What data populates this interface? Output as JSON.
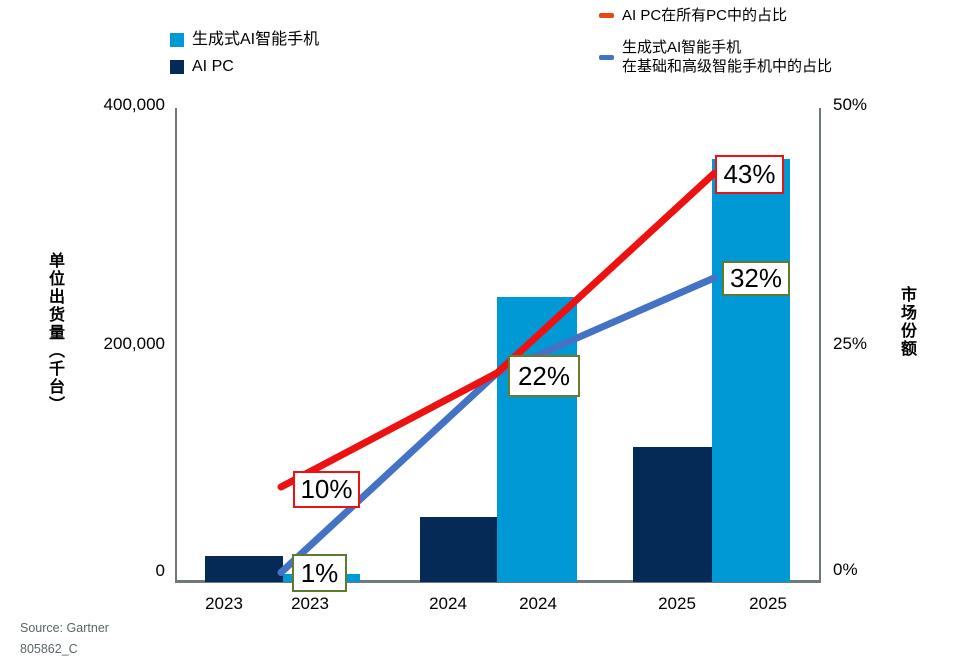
{
  "legend_left": {
    "items": [
      {
        "label": "生成式AI智能手机",
        "color": "#0099d6"
      },
      {
        "label": "AI PC",
        "color": "#052a56"
      }
    ]
  },
  "legend_right": {
    "items": [
      {
        "label": "AI PC在所有PC中的占比",
        "color": "#e8490f"
      },
      {
        "line1": "生成式AI智能手机",
        "line2": "在基础和高级智能手机中的占比",
        "color": "#4472c4"
      }
    ]
  },
  "y_axis_left": {
    "title": "单位出货量（千台）",
    "ticks": [
      "400,000",
      "200,000",
      "0"
    ]
  },
  "y_axis_right": {
    "title": "市场份额",
    "ticks": [
      "50%",
      "25%",
      "0%"
    ]
  },
  "source": {
    "line1": "Source: Gartner",
    "line2": "805862_C"
  },
  "chart_data": {
    "type": "bar-line-combo",
    "categories": [
      "2023",
      "2024",
      "2025"
    ],
    "x_tick_labels": [
      "2023",
      "2023",
      "2024",
      "2024",
      "2025",
      "2025"
    ],
    "ylabel_left": "单位出货量（千台）",
    "ylabel_right": "市场份额",
    "ylim_left": [
      0,
      400000
    ],
    "ylim_right_percent": [
      0,
      50
    ],
    "grid": false,
    "bar_series": [
      {
        "name": "AI PC",
        "color": "#052a56",
        "axis": "left",
        "values_thousand_units": [
          22000,
          54500,
          114000
        ]
      },
      {
        "name": "生成式AI智能手机",
        "color": "#0099d6",
        "axis": "left",
        "values_thousand_units": [
          7000,
          240000,
          356000
        ]
      }
    ],
    "line_series": [
      {
        "name": "AI PC在所有PC中的占比",
        "color": "#ee1111",
        "axis": "right",
        "values_percent": [
          10,
          22,
          43
        ]
      },
      {
        "name": "生成式AI智能手机在基础和高级智能手机中的占比",
        "color": "#4472c4",
        "axis": "right",
        "values_percent": [
          1,
          22,
          32
        ]
      }
    ],
    "data_labels": [
      {
        "text": "10%",
        "series": "AI PC在所有PC中的占比",
        "category": "2023",
        "border_color": "#ee1111"
      },
      {
        "text": "1%",
        "series": "生成式AI智能手机在基础和高级智能手机中的占比",
        "category": "2023",
        "border_color": "#5d7b2e"
      },
      {
        "text": "22%",
        "series": "生成式AI智能手机在基础和高级智能手机中的占比",
        "category": "2024",
        "border_color": "#6b7b2d"
      },
      {
        "text": "43%",
        "series": "AI PC在所有PC中的占比",
        "category": "2025",
        "border_color": "#ee1111"
      },
      {
        "text": "32%",
        "series": "生成式AI智能手机在基础和高级智能手机中的占比",
        "category": "2025",
        "border_color": "#5d7b2e"
      }
    ]
  }
}
